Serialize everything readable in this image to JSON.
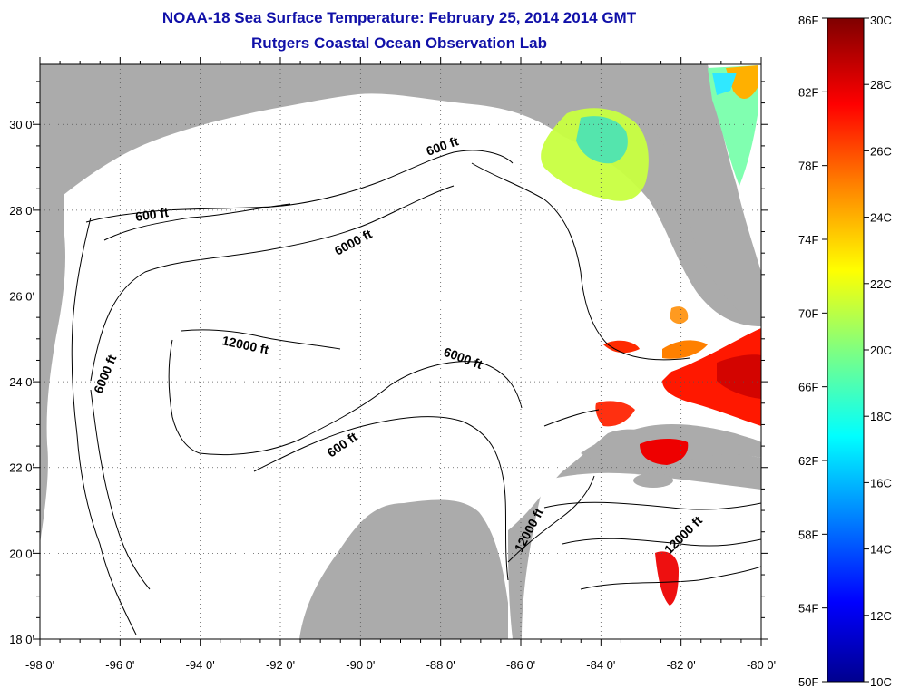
{
  "header": {
    "title": "NOAA-18 Sea Surface Temperature:  February 25, 2014 2014 GMT",
    "subtitle": "Rutgers Coastal Ocean Observation Lab"
  },
  "axes": {
    "lon_ticks": [
      "-98 0'",
      "-96 0'",
      "-94 0'",
      "-92 0'",
      "-90 0'",
      "-88 0'",
      "-86 0'",
      "-84 0'",
      "-82 0'",
      "-80 0'"
    ],
    "lat_ticks": [
      "18 0'",
      "20 0'",
      "22 0'",
      "24 0'",
      "26 0'",
      "28 0'",
      "30 0'"
    ],
    "lon_range": [
      -98,
      -80
    ],
    "lat_range": [
      18,
      31.4
    ]
  },
  "colorbar": {
    "fahrenheit_labels": [
      "86F",
      "82F",
      "78F",
      "74F",
      "70F",
      "66F",
      "62F",
      "58F",
      "54F",
      "50F"
    ],
    "celsius_labels": [
      "30C",
      "28C",
      "26C",
      "24C",
      "22C",
      "20C",
      "18C",
      "16C",
      "14C",
      "12C",
      "10C"
    ],
    "range_c": [
      10,
      30
    ],
    "range_f": [
      50,
      86
    ]
  },
  "contours": [
    {
      "label": "600 ft"
    },
    {
      "label": "600 ft"
    },
    {
      "label": "600 ft"
    },
    {
      "label": "6000 ft"
    },
    {
      "label": "6000 ft"
    },
    {
      "label": "6000 ft"
    },
    {
      "label": "12000 ft"
    },
    {
      "label": "12000 ft"
    },
    {
      "label": "12000 ft"
    }
  ],
  "colors": {
    "land": "#ababab",
    "ocean": "#ffffff",
    "title": "#1010a8"
  }
}
